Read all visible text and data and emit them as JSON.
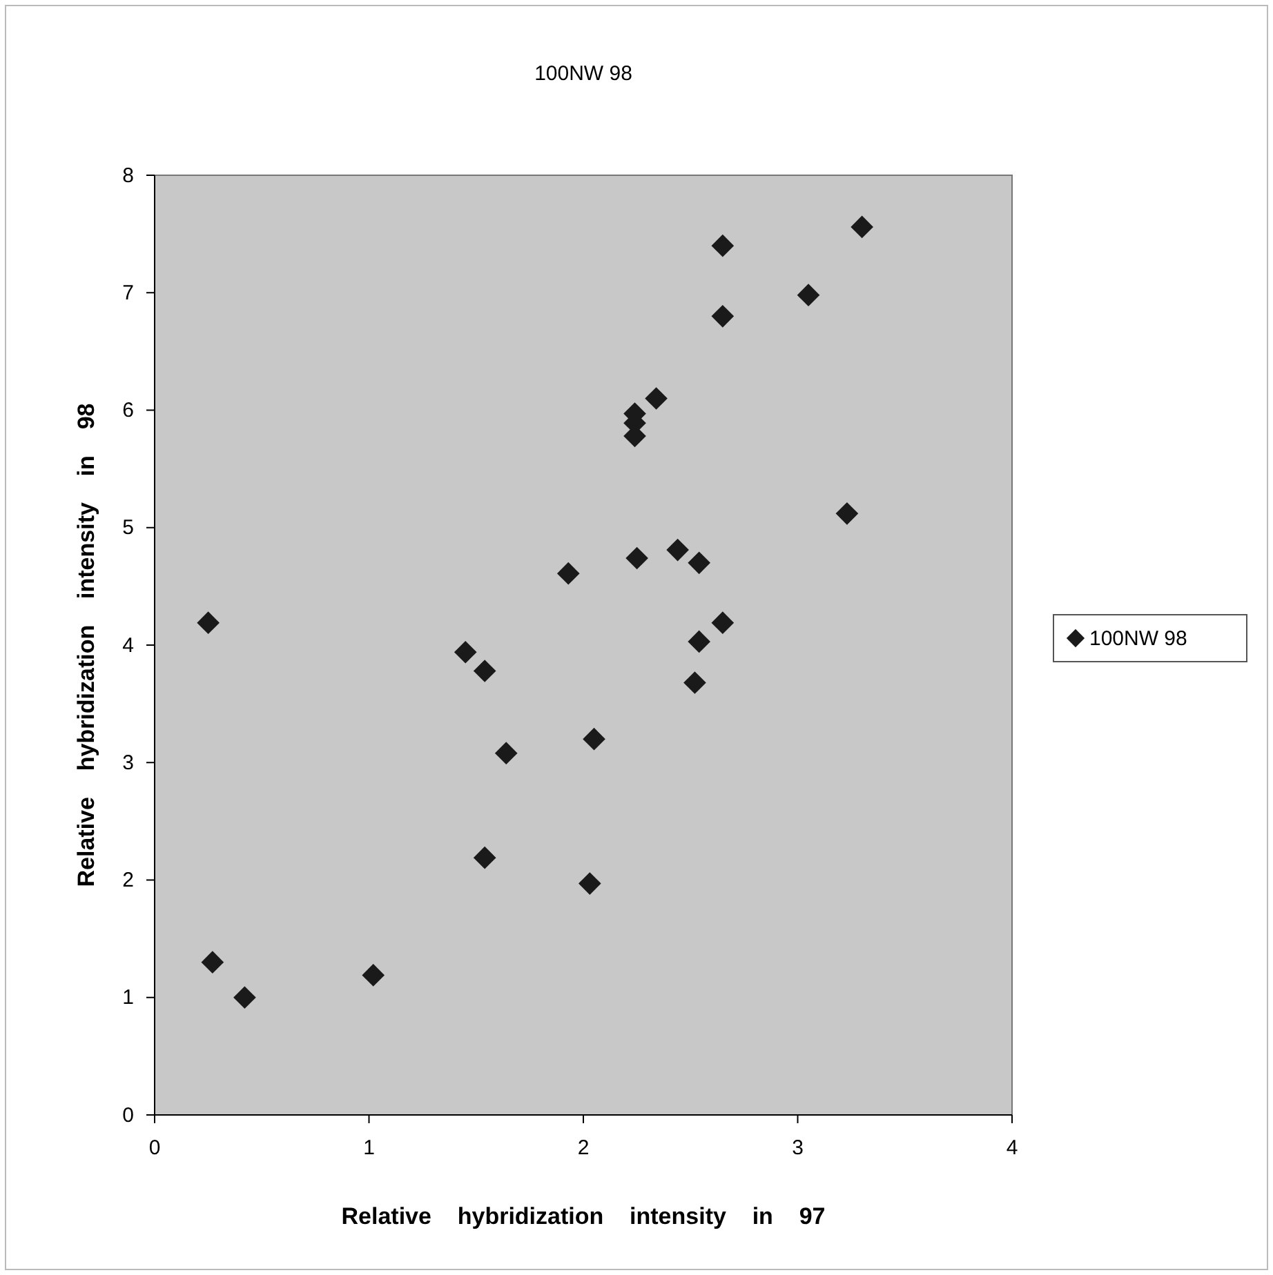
{
  "chart_data": {
    "type": "scatter",
    "title": "100NW 98",
    "xlabel": "Relative    hybridization    intensity    in    97",
    "ylabel": "Relative    hybridization    intensity    in    98",
    "xlim": [
      0,
      4
    ],
    "xticks": [
      0,
      1,
      2,
      3,
      4
    ],
    "ylim": [
      0,
      8
    ],
    "yticks": [
      0,
      1,
      2,
      3,
      4,
      5,
      6,
      7,
      8
    ],
    "grid": false,
    "legend": "right",
    "marker": "diamond",
    "series": [
      {
        "name": "100NW 98",
        "color": "#1a1a1a",
        "x": [
          0.25,
          0.27,
          0.42,
          1.02,
          1.45,
          1.54,
          1.54,
          1.64,
          1.93,
          2.05,
          2.03,
          2.24,
          2.24,
          2.24,
          2.34,
          2.25,
          2.44,
          2.54,
          2.54,
          2.52,
          2.65,
          2.65,
          2.65,
          3.05,
          3.23,
          3.3
        ],
        "values": [
          4.19,
          1.3,
          1.0,
          1.19,
          3.94,
          3.78,
          2.19,
          3.08,
          4.61,
          3.2,
          1.97,
          5.97,
          5.89,
          5.78,
          6.1,
          4.74,
          4.81,
          4.7,
          4.03,
          3.68,
          4.19,
          6.8,
          7.4,
          6.98,
          5.12,
          7.56
        ]
      }
    ]
  }
}
